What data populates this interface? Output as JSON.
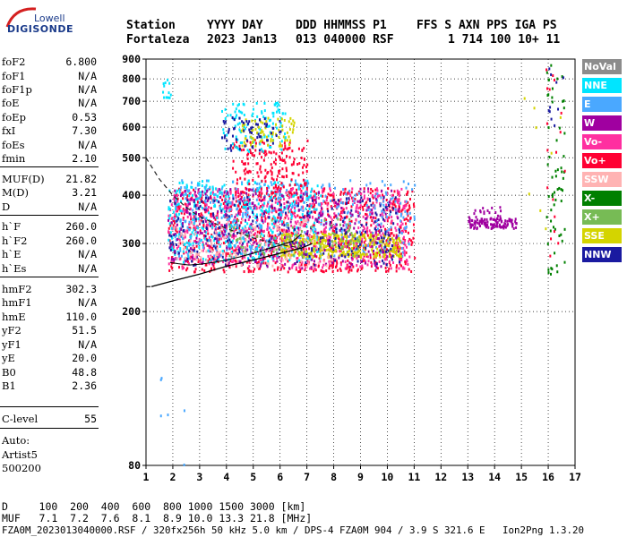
{
  "logo": {
    "brand": "Lowell",
    "name": "DIGISONDE"
  },
  "header": {
    "row1": [
      "Station",
      "YYYY DAY",
      "DDD HHMMSS P1",
      "FFS S AXN PPS IGA PS"
    ],
    "row2": [
      "Fortaleza",
      "2023 Jan13",
      "013 040000 RSF",
      "1 714 100 10+ 11"
    ]
  },
  "params": [
    {
      "label": "foF2",
      "value": "6.800"
    },
    {
      "label": "foF1",
      "value": "N/A"
    },
    {
      "label": "foF1p",
      "value": "N/A"
    },
    {
      "label": "foE",
      "value": "N/A"
    },
    {
      "label": "foEp",
      "value": "0.53"
    },
    {
      "label": "fxI",
      "value": "7.30"
    },
    {
      "label": "foEs",
      "value": "N/A"
    },
    {
      "label": "fmin",
      "value": "2.10"
    },
    {
      "label": "MUF(D)",
      "value": "21.82"
    },
    {
      "label": "M(D)",
      "value": "3.21"
    },
    {
      "label": "D",
      "value": "N/A"
    },
    {
      "label": "h`F",
      "value": "260.0"
    },
    {
      "label": "h`F2",
      "value": "260.0"
    },
    {
      "label": "h`E",
      "value": "N/A"
    },
    {
      "label": "h`Es",
      "value": "N/A"
    },
    {
      "label": "hmF2",
      "value": "302.3"
    },
    {
      "label": "hmF1",
      "value": "N/A"
    },
    {
      "label": "hmE",
      "value": "110.0"
    },
    {
      "label": "yF2",
      "value": "51.5"
    },
    {
      "label": "yF1",
      "value": "N/A"
    },
    {
      "label": "yE",
      "value": "20.0"
    },
    {
      "label": "B0",
      "value": "48.8"
    },
    {
      "label": "B1",
      "value": "2.36"
    },
    {
      "label": "C-level",
      "value": "55"
    }
  ],
  "auto": {
    "line1": "Auto:",
    "line2": "Artist5",
    "line3": "500200"
  },
  "footer": {
    "d_row": "D     100  200  400  600  800 1000 1500 3000 [km]",
    "muf_row": "MUF   7.1  7.2  7.6  8.1  8.9 10.0 13.3 21.8 [MHz]",
    "info_row": "FZA0M_2023013040000.RSF / 320fx256h 50 kHz 5.0 km / DPS-4 FZA0M 904 / 3.9 S 321.6 E   Ion2Png 1.3.20"
  },
  "chart_data": {
    "type": "scatter",
    "xlim": [
      1,
      17
    ],
    "ylim": [
      80,
      900
    ],
    "y_scale": "log",
    "x_ticks": [
      1,
      2,
      3,
      4,
      5,
      6,
      7,
      8,
      9,
      10,
      11,
      12,
      13,
      14,
      15,
      16,
      17
    ],
    "y_ticks": [
      80,
      200,
      300,
      400,
      500,
      600,
      700,
      800,
      900
    ],
    "grid": true,
    "legend_position": "right",
    "legend": [
      {
        "name": "NoVal",
        "color": "#8c8c8c"
      },
      {
        "name": "NNE",
        "color": "#00e5ff"
      },
      {
        "name": "E",
        "color": "#4aa8ff"
      },
      {
        "name": "W",
        "color": "#a000a0"
      },
      {
        "name": "Vo-",
        "color": "#ff2fa0"
      },
      {
        "name": "Vo+",
        "color": "#ff0033"
      },
      {
        "name": "SSW",
        "color": "#ffb3b3"
      },
      {
        "name": "X-",
        "color": "#008000"
      },
      {
        "name": "X+",
        "color": "#77bb55"
      },
      {
        "name": "SSE",
        "color": "#d4d400"
      },
      {
        "name": "NNW",
        "color": "#1a1aa0"
      }
    ],
    "profile_solid": [
      [
        1.2,
        232
      ],
      [
        2,
        240
      ],
      [
        3,
        250
      ],
      [
        4,
        262
      ],
      [
        5,
        272
      ],
      [
        6,
        283
      ],
      [
        6.8,
        292
      ],
      [
        7.2,
        300
      ]
    ],
    "profile_dashed": [
      [
        1,
        500
      ],
      [
        1.5,
        440
      ],
      [
        2,
        400
      ],
      [
        2.5,
        372
      ],
      [
        3,
        352
      ],
      [
        4,
        328
      ],
      [
        5,
        310
      ],
      [
        6,
        298
      ],
      [
        6.8,
        292
      ]
    ],
    "profile_dashed_low": [
      [
        1,
        232
      ],
      [
        1.2,
        232
      ]
    ],
    "o_trace": [
      [
        1.9,
        268
      ],
      [
        2.2,
        266
      ],
      [
        2.6,
        264
      ],
      [
        3,
        265
      ],
      [
        3.5,
        268
      ],
      [
        4,
        272
      ],
      [
        4.5,
        277
      ],
      [
        5,
        283
      ],
      [
        5.5,
        290
      ],
      [
        6,
        297
      ],
      [
        6.5,
        305
      ],
      [
        6.8,
        318
      ]
    ],
    "clusters": [
      {
        "series": "Vo+",
        "x": [
          1.8,
          11.0
        ],
        "y": [
          255,
          420
        ],
        "n": 900
      },
      {
        "series": "Vo-",
        "x": [
          1.8,
          10.8
        ],
        "y": [
          260,
          420
        ],
        "n": 700
      },
      {
        "series": "NNE",
        "x": [
          1.8,
          7.5
        ],
        "y": [
          270,
          440
        ],
        "n": 450
      },
      {
        "series": "E",
        "x": [
          2.0,
          11.0
        ],
        "y": [
          280,
          440
        ],
        "n": 400
      },
      {
        "series": "SSE",
        "x": [
          6.0,
          10.5
        ],
        "y": [
          278,
          320
        ],
        "n": 350
      },
      {
        "series": "NNW",
        "x": [
          1.8,
          10.5
        ],
        "y": [
          265,
          400
        ],
        "n": 250
      },
      {
        "series": "W",
        "x": [
          1.8,
          10.5
        ],
        "y": [
          260,
          420
        ],
        "n": 300
      },
      {
        "series": "SSW",
        "x": [
          2.0,
          8.0
        ],
        "y": [
          262,
          350
        ],
        "n": 150
      },
      {
        "series": "X+",
        "x": [
          4.0,
          9.0
        ],
        "y": [
          280,
          350
        ],
        "n": 80
      },
      {
        "series": "Vo+",
        "x": [
          4.2,
          7.0
        ],
        "y": [
          400,
          560
        ],
        "n": 180
      },
      {
        "series": "NNE",
        "x": [
          3.8,
          6.2
        ],
        "y": [
          520,
          700
        ],
        "n": 110
      },
      {
        "series": "SSE",
        "x": [
          4.5,
          6.5
        ],
        "y": [
          540,
          640
        ],
        "n": 80
      },
      {
        "series": "NNW",
        "x": [
          3.8,
          6.0
        ],
        "y": [
          520,
          640
        ],
        "n": 60
      },
      {
        "series": "W",
        "x": [
          13.0,
          14.8
        ],
        "y": [
          330,
          350
        ],
        "n": 110
      },
      {
        "series": "W",
        "x": [
          13.0,
          14.2
        ],
        "y": [
          350,
          375
        ],
        "n": 20
      },
      {
        "series": "NNE",
        "x": [
          1.6,
          1.9
        ],
        "y": [
          720,
          810
        ],
        "n": 12
      },
      {
        "series": "X-",
        "x": [
          15.9,
          16.6
        ],
        "y": [
          250,
          880
        ],
        "n": 60
      },
      {
        "series": "Vo+",
        "x": [
          15.9,
          16.6
        ],
        "y": [
          250,
          880
        ],
        "n": 18
      },
      {
        "series": "NNW",
        "x": [
          15.9,
          16.6
        ],
        "y": [
          600,
          880
        ],
        "n": 10
      },
      {
        "series": "SSE",
        "x": [
          15.0,
          16.6
        ],
        "y": [
          260,
          800
        ],
        "n": 8
      },
      {
        "series": "E",
        "x": [
          1.5,
          2.6
        ],
        "y": [
          80,
          160
        ],
        "n": 6
      }
    ]
  }
}
